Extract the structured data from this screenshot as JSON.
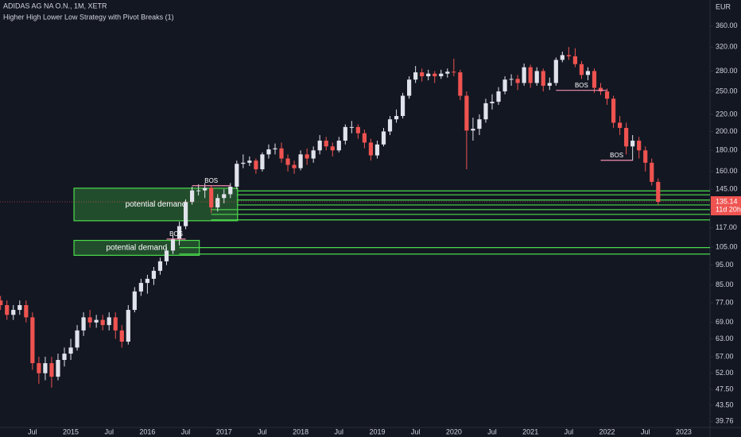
{
  "header": {
    "title": "ADIDAS AG NA O.N., 1M, XETR",
    "indicator": "Higher High Lower Low Strategy with Pivot Breaks (1)"
  },
  "chart_data": {
    "type": "candlestick",
    "currency": "EUR",
    "log": true,
    "grid": false,
    "up_color": "#e0e3eb",
    "down_color": "#ef5350",
    "categories": [
      null,
      null,
      null,
      null,
      null,
      "Jul",
      null,
      null,
      null,
      null,
      null,
      "2015",
      null,
      null,
      null,
      null,
      null,
      "Jul",
      null,
      null,
      null,
      null,
      null,
      "2016",
      null,
      null,
      null,
      null,
      null,
      "Jul",
      null,
      null,
      null,
      null,
      null,
      "2017",
      null,
      null,
      null,
      null,
      null,
      "Jul",
      null,
      null,
      null,
      null,
      null,
      "2018",
      null,
      null,
      null,
      null,
      null,
      "Jul",
      null,
      null,
      null,
      null,
      null,
      "2019",
      null,
      null,
      null,
      null,
      null,
      "Jul",
      null,
      null,
      null,
      null,
      null,
      "2020",
      null,
      null,
      null,
      null,
      null,
      "Jul",
      null,
      null,
      null,
      null,
      null,
      "2021",
      null,
      null,
      null,
      null,
      null,
      "Jul",
      null,
      null,
      null,
      null,
      null,
      "2022",
      null,
      null,
      null,
      null,
      null,
      "Jul",
      null,
      null,
      null,
      null,
      null,
      "2023"
    ],
    "open": [
      78,
      76,
      72,
      74,
      76,
      71,
      55,
      52,
      55,
      51,
      56,
      58,
      60,
      66,
      71,
      69,
      70,
      68,
      71,
      66,
      62,
      74,
      82,
      86,
      88,
      92,
      97,
      103,
      110,
      118,
      135,
      144,
      144,
      146,
      131,
      138,
      141,
      147,
      167,
      168,
      170,
      162,
      176,
      181,
      182,
      172,
      166,
      163,
      176,
      172,
      180,
      190,
      184,
      180,
      190,
      205,
      205,
      198,
      188,
      175,
      186,
      200,
      214,
      218,
      244,
      267,
      278,
      272,
      276,
      272,
      276,
      279,
      278,
      244,
      201,
      203,
      214,
      234,
      236,
      250,
      267,
      268,
      262,
      286,
      262,
      280,
      258,
      262,
      298,
      306,
      304,
      291,
      274,
      280,
      255,
      250,
      240,
      210,
      204,
      184,
      190,
      180,
      168,
      151,
      null,
      null,
      null,
      null
    ],
    "high": [
      80,
      78,
      76,
      78,
      78,
      73,
      57,
      57,
      57,
      58,
      60,
      63,
      68,
      73,
      74,
      72,
      72,
      73,
      73,
      68,
      76,
      84,
      88,
      90,
      94,
      99,
      105,
      112,
      121,
      137,
      147,
      149,
      150,
      148,
      141,
      145,
      150,
      170,
      176,
      174,
      172,
      178,
      186,
      187,
      188,
      176,
      170,
      180,
      182,
      184,
      196,
      194,
      188,
      194,
      208,
      212,
      208,
      202,
      192,
      190,
      204,
      218,
      226,
      248,
      272,
      288,
      284,
      282,
      280,
      282,
      284,
      300,
      282,
      250,
      216,
      220,
      240,
      246,
      256,
      272,
      275,
      274,
      292,
      290,
      286,
      284,
      270,
      302,
      312,
      320,
      318,
      296,
      286,
      284,
      262,
      254,
      244,
      218,
      210,
      196,
      194,
      184,
      172,
      154,
      null,
      null,
      null,
      null
    ],
    "low": [
      74,
      70,
      70,
      72,
      69,
      53,
      49,
      50,
      48,
      50,
      54,
      56,
      59,
      64,
      67,
      67,
      66,
      66,
      63,
      60,
      61,
      73,
      80,
      81,
      85,
      90,
      95,
      101,
      106,
      116,
      133,
      140,
      138,
      127,
      128,
      134,
      138,
      145,
      163,
      165,
      158,
      160,
      172,
      176,
      168,
      160,
      158,
      161,
      166,
      168,
      176,
      180,
      174,
      178,
      186,
      198,
      192,
      182,
      170,
      172,
      184,
      196,
      210,
      215,
      240,
      262,
      264,
      266,
      262,
      268,
      270,
      272,
      238,
      162,
      190,
      196,
      210,
      226,
      232,
      246,
      258,
      252,
      258,
      255,
      258,
      250,
      252,
      258,
      294,
      298,
      286,
      268,
      266,
      248,
      245,
      232,
      204,
      196,
      176,
      170,
      172,
      160,
      148,
      133,
      null,
      null,
      null,
      null
    ],
    "close": [
      76,
      72,
      74,
      76,
      71,
      55,
      52,
      55,
      51,
      56,
      58,
      60,
      66,
      71,
      69,
      70,
      68,
      71,
      66,
      62,
      74,
      82,
      86,
      88,
      92,
      97,
      103,
      110,
      118,
      135,
      144,
      144,
      146,
      131,
      138,
      141,
      147,
      167,
      168,
      170,
      162,
      176,
      181,
      182,
      172,
      166,
      163,
      176,
      172,
      180,
      190,
      184,
      180,
      190,
      205,
      205,
      198,
      188,
      175,
      186,
      200,
      214,
      218,
      244,
      267,
      278,
      272,
      276,
      272,
      276,
      279,
      278,
      244,
      201,
      203,
      214,
      234,
      236,
      250,
      267,
      268,
      262,
      286,
      262,
      280,
      258,
      262,
      298,
      306,
      304,
      291,
      274,
      280,
      255,
      250,
      240,
      210,
      204,
      184,
      190,
      180,
      168,
      151,
      135.14,
      null,
      null,
      null,
      null
    ],
    "countdown": "11d 20h",
    "ylim": [
      38.1,
      416
    ],
    "yticks": [
      {
        "value": 360,
        "label": "360.00"
      },
      {
        "value": 320,
        "label": "320.00"
      },
      {
        "value": 280,
        "label": "280.00"
      },
      {
        "value": 250,
        "label": "250.00"
      },
      {
        "value": 220,
        "label": "220.00"
      },
      {
        "value": 200,
        "label": "200.00"
      },
      {
        "value": 180,
        "label": "180.00"
      },
      {
        "value": 160,
        "label": "160.00"
      },
      {
        "value": 145,
        "label": "145.00"
      },
      {
        "value": 117,
        "label": "117.00"
      },
      {
        "value": 105,
        "label": "105.00"
      },
      {
        "value": 95,
        "label": "95.00"
      },
      {
        "value": 85,
        "label": "85.00"
      },
      {
        "value": 77,
        "label": "77.00"
      },
      {
        "value": 69,
        "label": "69.00"
      },
      {
        "value": 63,
        "label": "63.00"
      },
      {
        "value": 57,
        "label": "57.00"
      },
      {
        "value": 52,
        "label": "52.00"
      },
      {
        "value": 47.5,
        "label": "47.50"
      },
      {
        "value": 43.5,
        "label": "43.50"
      },
      39.76
    ],
    "zone_color": "#4cdb4c",
    "zones": [
      {
        "label": "potential demand",
        "top": 145.8,
        "bottom": 121.6,
        "start": 12,
        "end": 37
      },
      {
        "label": "potential demand",
        "top": 109.0,
        "bottom": 100.3,
        "start": 12,
        "end": 31
      }
    ],
    "levels": [
      {
        "price": 143.6,
        "start": 37
      },
      {
        "price": 140.5,
        "start": 37
      },
      {
        "price": 136.5,
        "start": 37
      },
      {
        "price": 132.8,
        "start": 37
      },
      {
        "price": 129.4,
        "start": 33
      },
      {
        "price": 126.0,
        "start": 33
      },
      {
        "price": 122.2,
        "start": 33
      },
      {
        "price": 104.7,
        "start": 28
      },
      {
        "price": 101.0,
        "start": 28
      }
    ],
    "bos_color": "#f48fb1",
    "bos": [
      {
        "label": "BOS",
        "price": 147.8,
        "start": 30,
        "end": 36
      },
      {
        "label": "BOS",
        "price": 109.8,
        "start": 26,
        "end": 29
      },
      {
        "label": "BOS",
        "price": 251.5,
        "start": 87,
        "end": 95
      },
      {
        "label": "BOS",
        "price": 170.3,
        "start": 94,
        "end": 99
      }
    ]
  }
}
